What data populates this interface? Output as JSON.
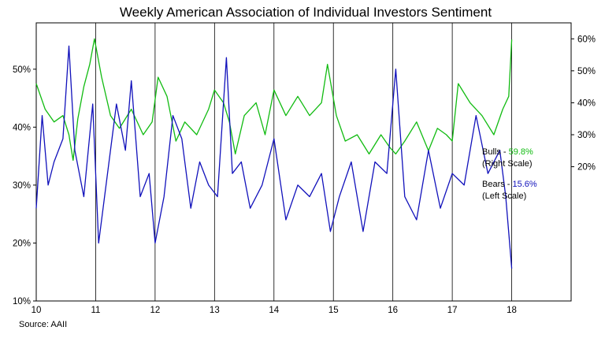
{
  "chart_data": {
    "type": "line",
    "title": "Weekly American Association of Individual  Investors Sentiment",
    "source": "Source: AAII",
    "x_axis": {
      "range": [
        10,
        19
      ],
      "tick_labels": [
        "10",
        "11",
        "12",
        "13",
        "14",
        "15",
        "16",
        "17",
        "18"
      ],
      "tick_values": [
        10,
        11,
        12,
        13,
        14,
        15,
        16,
        17,
        18
      ],
      "vertical_gridlines": true
    },
    "left_axis": {
      "range": [
        10,
        58
      ],
      "tick_values": [
        10,
        20,
        30,
        40,
        50
      ],
      "tick_labels": [
        "10%",
        "20%",
        "30%",
        "40%",
        "50%"
      ]
    },
    "right_axis": {
      "range": [
        -22,
        65
      ],
      "tick_values": [
        20,
        30,
        40,
        50,
        60
      ],
      "tick_labels": [
        "20%",
        "30%",
        "40%",
        "50%",
        "60%"
      ]
    },
    "colors": {
      "bulls": "#11bb11",
      "bears": "#1111bb",
      "bulls_value_text": "#11bb11",
      "bears_value_text": "#1111bb",
      "axis": "#000000",
      "grid": "#000000"
    },
    "series": [
      {
        "key": "bulls",
        "axis": "right",
        "legend_prefix": "Bulls - ",
        "legend_value": "59.8%",
        "legend_scale": "(Right Scale)",
        "x": [
          10.0,
          10.15,
          10.3,
          10.45,
          10.55,
          10.62,
          10.7,
          10.8,
          10.9,
          10.98,
          11.1,
          11.25,
          11.4,
          11.6,
          11.8,
          11.95,
          12.05,
          12.2,
          12.35,
          12.5,
          12.7,
          12.9,
          13.0,
          13.15,
          13.25,
          13.35,
          13.5,
          13.7,
          13.85,
          14.0,
          14.2,
          14.4,
          14.6,
          14.8,
          14.9,
          15.05,
          15.2,
          15.4,
          15.6,
          15.8,
          15.95,
          16.05,
          16.2,
          16.4,
          16.6,
          16.75,
          16.9,
          17.0,
          17.1,
          17.3,
          17.5,
          17.7,
          17.85,
          17.95,
          18.0
        ],
        "values": [
          46,
          38,
          34,
          36,
          30,
          22,
          35,
          45,
          52,
          60,
          48,
          36,
          32,
          38,
          30,
          34,
          48,
          42,
          28,
          34,
          30,
          38,
          44,
          40,
          34,
          24,
          36,
          40,
          30,
          44,
          36,
          42,
          36,
          40,
          52,
          36,
          28,
          30,
          24,
          30,
          26,
          24,
          28,
          34,
          25,
          32,
          30,
          28,
          46,
          40,
          36,
          30,
          38,
          42,
          59.8
        ]
      },
      {
        "key": "bears",
        "axis": "left",
        "legend_prefix": "Bears - ",
        "legend_value": "15.6%",
        "legend_scale": "(Left Scale)",
        "x": [
          10.0,
          10.1,
          10.2,
          10.3,
          10.45,
          10.55,
          10.65,
          10.8,
          10.95,
          11.05,
          11.2,
          11.35,
          11.5,
          11.6,
          11.75,
          11.9,
          12.0,
          12.15,
          12.3,
          12.45,
          12.6,
          12.75,
          12.9,
          13.05,
          13.2,
          13.3,
          13.45,
          13.6,
          13.8,
          14.0,
          14.2,
          14.4,
          14.6,
          14.8,
          14.95,
          15.1,
          15.3,
          15.5,
          15.7,
          15.9,
          16.05,
          16.2,
          16.4,
          16.6,
          16.8,
          17.0,
          17.2,
          17.4,
          17.6,
          17.8,
          17.9,
          18.0
        ],
        "values": [
          26,
          42,
          30,
          34,
          38,
          54,
          36,
          28,
          44,
          20,
          32,
          44,
          36,
          48,
          28,
          32,
          20,
          28,
          42,
          38,
          26,
          34,
          30,
          28,
          52,
          32,
          34,
          26,
          30,
          38,
          24,
          30,
          28,
          32,
          22,
          28,
          34,
          22,
          34,
          32,
          50,
          28,
          24,
          36,
          26,
          32,
          30,
          42,
          32,
          36,
          28,
          15.6
        ]
      }
    ]
  }
}
